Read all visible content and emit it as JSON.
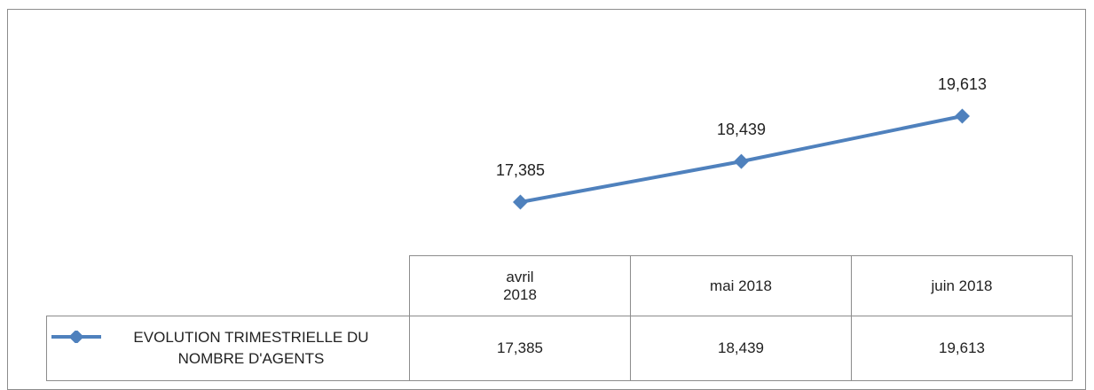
{
  "chart_data": {
    "type": "line",
    "categories": [
      "avril 2018",
      "mai 2018",
      "juin 2018"
    ],
    "series": [
      {
        "name": "EVOLUTION TRIMESTRIELLE DU NOMBRE D'AGENTS",
        "color": "#4f81bd",
        "values": [
          17385,
          18439,
          19613
        ],
        "value_labels": [
          "17,385",
          "18,439",
          "19,613"
        ]
      }
    ],
    "data_table": true
  }
}
